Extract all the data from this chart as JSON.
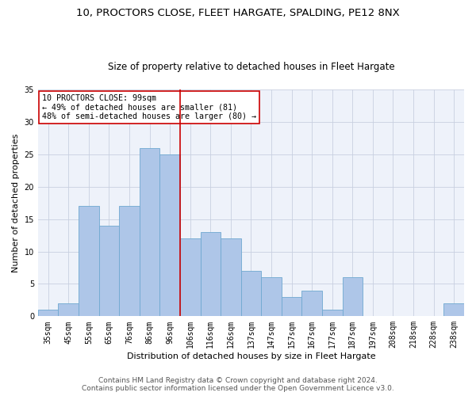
{
  "title1": "10, PROCTORS CLOSE, FLEET HARGATE, SPALDING, PE12 8NX",
  "title2": "Size of property relative to detached houses in Fleet Hargate",
  "xlabel": "Distribution of detached houses by size in Fleet Hargate",
  "ylabel": "Number of detached properties",
  "categories": [
    "35sqm",
    "45sqm",
    "55sqm",
    "65sqm",
    "76sqm",
    "86sqm",
    "96sqm",
    "106sqm",
    "116sqm",
    "126sqm",
    "137sqm",
    "147sqm",
    "157sqm",
    "167sqm",
    "177sqm",
    "187sqm",
    "197sqm",
    "208sqm",
    "218sqm",
    "228sqm",
    "238sqm"
  ],
  "values": [
    1,
    2,
    17,
    14,
    17,
    26,
    25,
    12,
    13,
    12,
    7,
    6,
    3,
    4,
    1,
    6,
    0,
    0,
    0,
    0,
    2
  ],
  "bar_color": "#aec6e8",
  "bar_edge_color": "#6fa8d0",
  "vline_x_index": 6,
  "vline_color": "#cc0000",
  "annotation_text": "10 PROCTORS CLOSE: 99sqm\n← 49% of detached houses are smaller (81)\n48% of semi-detached houses are larger (80) →",
  "annotation_box_color": "#ffffff",
  "annotation_box_edge_color": "#cc0000",
  "ylim": [
    0,
    35
  ],
  "yticks": [
    0,
    5,
    10,
    15,
    20,
    25,
    30,
    35
  ],
  "footer_text": "Contains HM Land Registry data © Crown copyright and database right 2024.\nContains public sector information licensed under the Open Government Licence v3.0.",
  "bg_color": "#eef2fa",
  "grid_color": "#c8d0e0",
  "title1_fontsize": 9.5,
  "title2_fontsize": 8.5,
  "xlabel_fontsize": 8,
  "ylabel_fontsize": 8,
  "footer_fontsize": 6.5,
  "tick_fontsize": 7
}
